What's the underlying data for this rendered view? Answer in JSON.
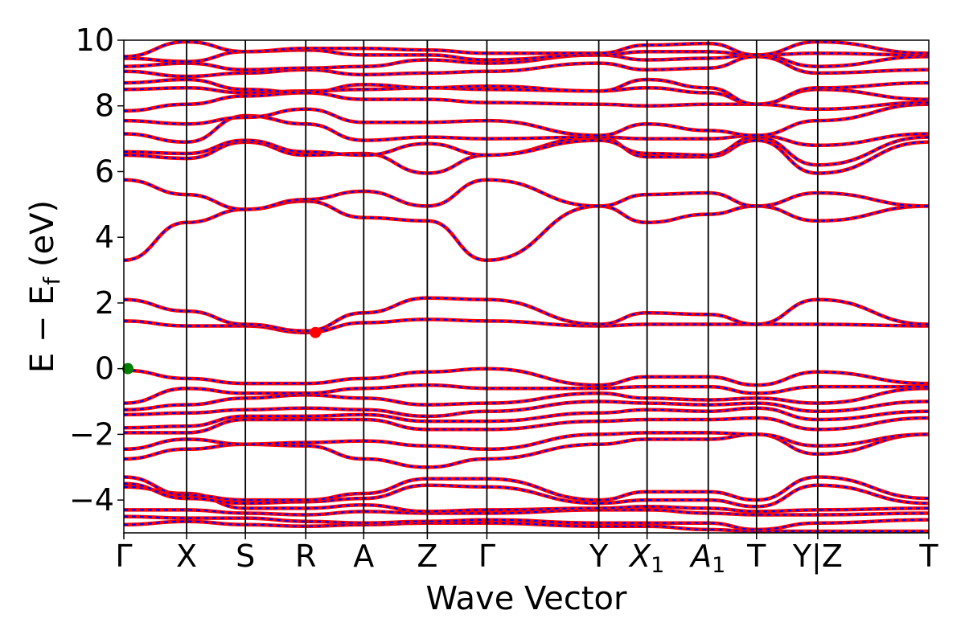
{
  "chart_data": {
    "type": "line",
    "xlabel": "Wave Vector",
    "ylabel_main": "E − E",
    "ylabel_sub": "f",
    "ylabel_unit": " (eV)",
    "ylim": [
      -5,
      10
    ],
    "yticks": [
      "−4",
      "−2",
      "0",
      "2",
      "4",
      "6",
      "8",
      "10"
    ],
    "ytick_values": [
      -4,
      -2,
      0,
      2,
      4,
      6,
      8,
      10
    ],
    "x_range": [
      0,
      1
    ],
    "kpath": [
      {
        "label": "Γ",
        "x": 0.0
      },
      {
        "label": "X",
        "x": 0.078
      },
      {
        "label": "S",
        "x": 0.151
      },
      {
        "label": "R",
        "x": 0.226
      },
      {
        "label": "A",
        "x": 0.298
      },
      {
        "label": "Z",
        "x": 0.377
      },
      {
        "label": "Γ",
        "x": 0.451
      },
      {
        "label": "Y",
        "x": 0.59
      },
      {
        "label": "X",
        "sub": "1",
        "italic": true,
        "x": 0.65
      },
      {
        "label": "A",
        "sub": "1",
        "italic": true,
        "x": 0.726
      },
      {
        "label": "T",
        "x": 0.786
      },
      {
        "label": "Y|Z",
        "x": 0.862
      },
      {
        "label": "T",
        "x": 1.0
      }
    ],
    "series_colors": {
      "band_solid": "#ff0000",
      "band_dash": "#0000ff"
    },
    "points": [
      {
        "role": "VBM",
        "x": 0.005,
        "y": 0.0,
        "color": "#008000"
      },
      {
        "role": "CBM",
        "x": 0.238,
        "y": 1.1,
        "color": "#ff0000"
      }
    ],
    "bands": [
      [
        -4.75,
        -4.65,
        -4.75,
        -4.8,
        -4.75,
        -4.7,
        -4.7,
        -4.8,
        -4.8,
        -4.9,
        -4.95,
        -4.95,
        -4.95
      ],
      [
        -4.5,
        -4.55,
        -4.55,
        -4.65,
        -4.7,
        -4.65,
        -4.6,
        -4.7,
        -4.7,
        -4.7,
        -4.9,
        -4.7,
        -4.6
      ],
      [
        -4.3,
        -4.3,
        -4.4,
        -4.45,
        -4.35,
        -4.4,
        -4.4,
        -4.3,
        -4.3,
        -4.4,
        -4.45,
        -4.45,
        -4.4
      ],
      [
        -3.6,
        -3.8,
        -4.25,
        -4.25,
        -4.15,
        -4.35,
        -4.3,
        -4.25,
        -4.2,
        -4.25,
        -4.35,
        -4.3,
        -4.25
      ],
      [
        -3.5,
        -3.95,
        -4.1,
        -4.05,
        -3.95,
        -3.55,
        -3.6,
        -4.1,
        -4.0,
        -4.0,
        -4.2,
        -3.55,
        -4.1
      ],
      [
        -3.3,
        -3.85,
        -4.0,
        -4.0,
        -3.8,
        -3.35,
        -3.35,
        -4.0,
        -3.75,
        -3.75,
        -4.0,
        -3.3,
        -3.95
      ],
      [
        -2.75,
        -2.45,
        -2.3,
        -2.35,
        -2.75,
        -3.0,
        -2.75,
        -2.3,
        -2.15,
        -2.15,
        -2.0,
        -2.6,
        -2.0
      ],
      [
        -2.45,
        -2.15,
        -2.3,
        -2.25,
        -2.2,
        -2.35,
        -2.45,
        -2.0,
        -1.95,
        -1.95,
        -2.0,
        -2.35,
        -2.0
      ],
      [
        -1.95,
        -1.95,
        -1.55,
        -1.55,
        -1.55,
        -1.85,
        -1.85,
        -1.6,
        -1.55,
        -1.55,
        -1.5,
        -1.85,
        -1.5
      ],
      [
        -1.8,
        -1.75,
        -1.45,
        -1.45,
        -1.4,
        -1.6,
        -1.6,
        -1.35,
        -1.25,
        -1.3,
        -1.2,
        -1.55,
        -1.3
      ],
      [
        -1.4,
        -1.35,
        -1.25,
        -1.2,
        -1.25,
        -1.45,
        -1.3,
        -1.0,
        -1.05,
        -1.1,
        -1.05,
        -1.3,
        -1.0
      ],
      [
        -1.25,
        -1.1,
        -0.9,
        -0.8,
        -0.9,
        -1.1,
        -1.05,
        -0.75,
        -0.9,
        -0.95,
        -0.9,
        -1.05,
        -0.6
      ],
      [
        -1.05,
        -0.6,
        -0.75,
        -0.75,
        -0.6,
        -0.5,
        -0.6,
        -0.6,
        -0.55,
        -0.55,
        -0.75,
        -0.55,
        -0.55
      ],
      [
        -0.05,
        -0.3,
        -0.45,
        -0.45,
        -0.3,
        -0.1,
        0.0,
        -0.5,
        -0.25,
        -0.25,
        -0.5,
        -0.1,
        -0.45
      ],
      [
        1.45,
        1.3,
        1.3,
        1.1,
        1.4,
        1.5,
        1.45,
        1.3,
        1.35,
        1.35,
        1.35,
        1.35,
        1.3
      ],
      [
        2.1,
        1.75,
        1.35,
        1.15,
        1.7,
        2.15,
        2.1,
        1.35,
        1.7,
        1.65,
        1.35,
        2.1,
        1.35
      ],
      [
        3.3,
        4.45,
        4.85,
        5.1,
        4.6,
        4.5,
        3.3,
        4.95,
        4.45,
        4.7,
        4.95,
        4.5,
        4.95
      ],
      [
        5.75,
        5.3,
        4.85,
        5.15,
        5.4,
        4.95,
        5.75,
        4.95,
        5.3,
        5.35,
        4.95,
        5.35,
        4.95
      ],
      [
        6.5,
        6.4,
        6.9,
        6.5,
        6.55,
        5.95,
        6.5,
        7.05,
        6.45,
        6.45,
        6.95,
        5.95,
        6.9
      ],
      [
        6.6,
        6.55,
        6.95,
        6.6,
        6.5,
        6.85,
        6.5,
        6.95,
        6.55,
        6.5,
        7.05,
        6.2,
        7.05
      ],
      [
        7.15,
        6.9,
        7.7,
        7.45,
        6.95,
        7.05,
        7.0,
        7.05,
        7.0,
        7.0,
        7.1,
        6.8,
        7.15
      ],
      [
        7.55,
        7.45,
        7.65,
        7.9,
        7.5,
        7.5,
        7.55,
        7.1,
        7.45,
        7.25,
        7.1,
        7.55,
        8.05
      ],
      [
        7.85,
        8.05,
        8.3,
        8.4,
        8.2,
        8.2,
        8.1,
        8.05,
        8.0,
        8.05,
        8.05,
        7.9,
        8.1
      ],
      [
        8.5,
        8.55,
        8.4,
        8.45,
        8.5,
        8.55,
        8.5,
        8.45,
        8.55,
        8.4,
        8.05,
        8.5,
        8.2
      ],
      [
        8.7,
        8.8,
        8.5,
        8.4,
        8.65,
        8.55,
        8.6,
        8.45,
        8.8,
        8.55,
        8.05,
        8.55,
        8.7
      ],
      [
        9.05,
        8.9,
        9.0,
        9.1,
        8.95,
        9.0,
        9.05,
        9.3,
        9.1,
        9.15,
        9.5,
        9.0,
        9.1
      ],
      [
        9.2,
        9.3,
        9.1,
        9.15,
        9.2,
        9.4,
        9.3,
        9.55,
        9.4,
        9.45,
        9.55,
        9.2,
        9.5
      ],
      [
        9.45,
        9.35,
        9.65,
        9.7,
        9.55,
        9.55,
        9.4,
        9.55,
        9.65,
        9.65,
        9.55,
        9.6,
        9.55
      ],
      [
        9.5,
        9.95,
        9.65,
        9.75,
        9.75,
        9.7,
        9.6,
        9.6,
        9.85,
        9.9,
        9.55,
        9.95,
        9.6
      ]
    ]
  }
}
